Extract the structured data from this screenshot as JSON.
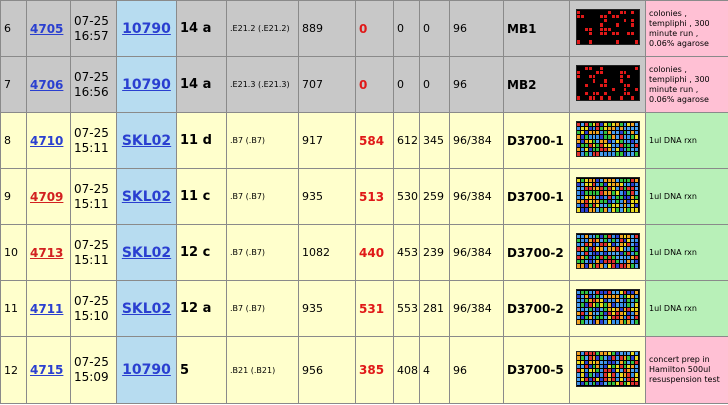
{
  "rows": [
    {
      "idx": "6",
      "run": "4705",
      "run_color": "blue",
      "date": "07-25",
      "time": "16:57",
      "plate": "10790",
      "age": "14 a",
      "well": ".E21.2 (.E21.2)",
      "v1": "889",
      "hits": "0",
      "v2": "0",
      "v3": "0",
      "fmt": "96",
      "cond": "MB1",
      "note": "colonies , templiphi , 300 minute run , 0.06% agarose",
      "note_color": "pink",
      "row_color": "gray",
      "thumb": "dark"
    },
    {
      "idx": "7",
      "run": "4706",
      "run_color": "blue",
      "date": "07-25",
      "time": "16:56",
      "plate": "10790",
      "age": "14 a",
      "well": ".E21.3 (.E21.3)",
      "v1": "707",
      "hits": "0",
      "v2": "0",
      "v3": "0",
      "fmt": "96",
      "cond": "MB2",
      "note": "colonies , templiphi , 300 minute run , 0.06% agarose",
      "note_color": "pink",
      "row_color": "gray",
      "thumb": "dark"
    },
    {
      "idx": "8",
      "run": "4710",
      "run_color": "blue",
      "date": "07-25",
      "time": "15:11",
      "plate": "SKL02",
      "age": "11 d",
      "well": ".B7 (.B7)",
      "v1": "917",
      "hits": "584",
      "v2": "612",
      "v3": "345",
      "fmt": "96/384",
      "cond": "D3700-1",
      "note": "1ul DNA rxn",
      "note_color": "green",
      "row_color": "yellow",
      "thumb": "color"
    },
    {
      "idx": "9",
      "run": "4709",
      "run_color": "red",
      "date": "07-25",
      "time": "15:11",
      "plate": "SKL02",
      "age": "11 c",
      "well": ".B7 (.B7)",
      "v1": "935",
      "hits": "513",
      "v2": "530",
      "v3": "259",
      "fmt": "96/384",
      "cond": "D3700-1",
      "note": "1ul DNA rxn",
      "note_color": "green",
      "row_color": "yellow",
      "thumb": "color"
    },
    {
      "idx": "10",
      "run": "4713",
      "run_color": "red",
      "date": "07-25",
      "time": "15:11",
      "plate": "SKL02",
      "age": "12 c",
      "well": ".B7 (.B7)",
      "v1": "1082",
      "hits": "440",
      "v2": "453",
      "v3": "239",
      "fmt": "96/384",
      "cond": "D3700-2",
      "note": "1ul DNA rxn",
      "note_color": "green",
      "row_color": "yellow",
      "thumb": "color"
    },
    {
      "idx": "11",
      "run": "4711",
      "run_color": "blue",
      "date": "07-25",
      "time": "15:10",
      "plate": "SKL02",
      "age": "12 a",
      "well": ".B7 (.B7)",
      "v1": "935",
      "hits": "531",
      "v2": "553",
      "v3": "281",
      "fmt": "96/384",
      "cond": "D3700-2",
      "note": "1ul DNA rxn",
      "note_color": "green",
      "row_color": "yellow",
      "thumb": "color"
    },
    {
      "idx": "12",
      "run": "4715",
      "run_color": "blue",
      "date": "07-25",
      "time": "15:09",
      "plate": "10790",
      "age": "5",
      "well": ".B21 (.B21)",
      "v1": "956",
      "hits": "385",
      "v2": "408",
      "v3": "4",
      "fmt": "96",
      "cond": "D3700-5",
      "note": "concert prep in Hamilton 500ul resuspension test",
      "note_color": "pink",
      "row_color": "yellow",
      "thumb": "color"
    }
  ],
  "colors": {
    "link_blue": "#2a3fd0",
    "link_red": "#d22020",
    "hits_red": "#e01818",
    "gray_row": "#c8c8c8",
    "yellow_row": "#ffffcc",
    "plate_blue": "#b7dcf0",
    "pink_note": "#ffc0d4",
    "green_note": "#b8f0b8"
  }
}
